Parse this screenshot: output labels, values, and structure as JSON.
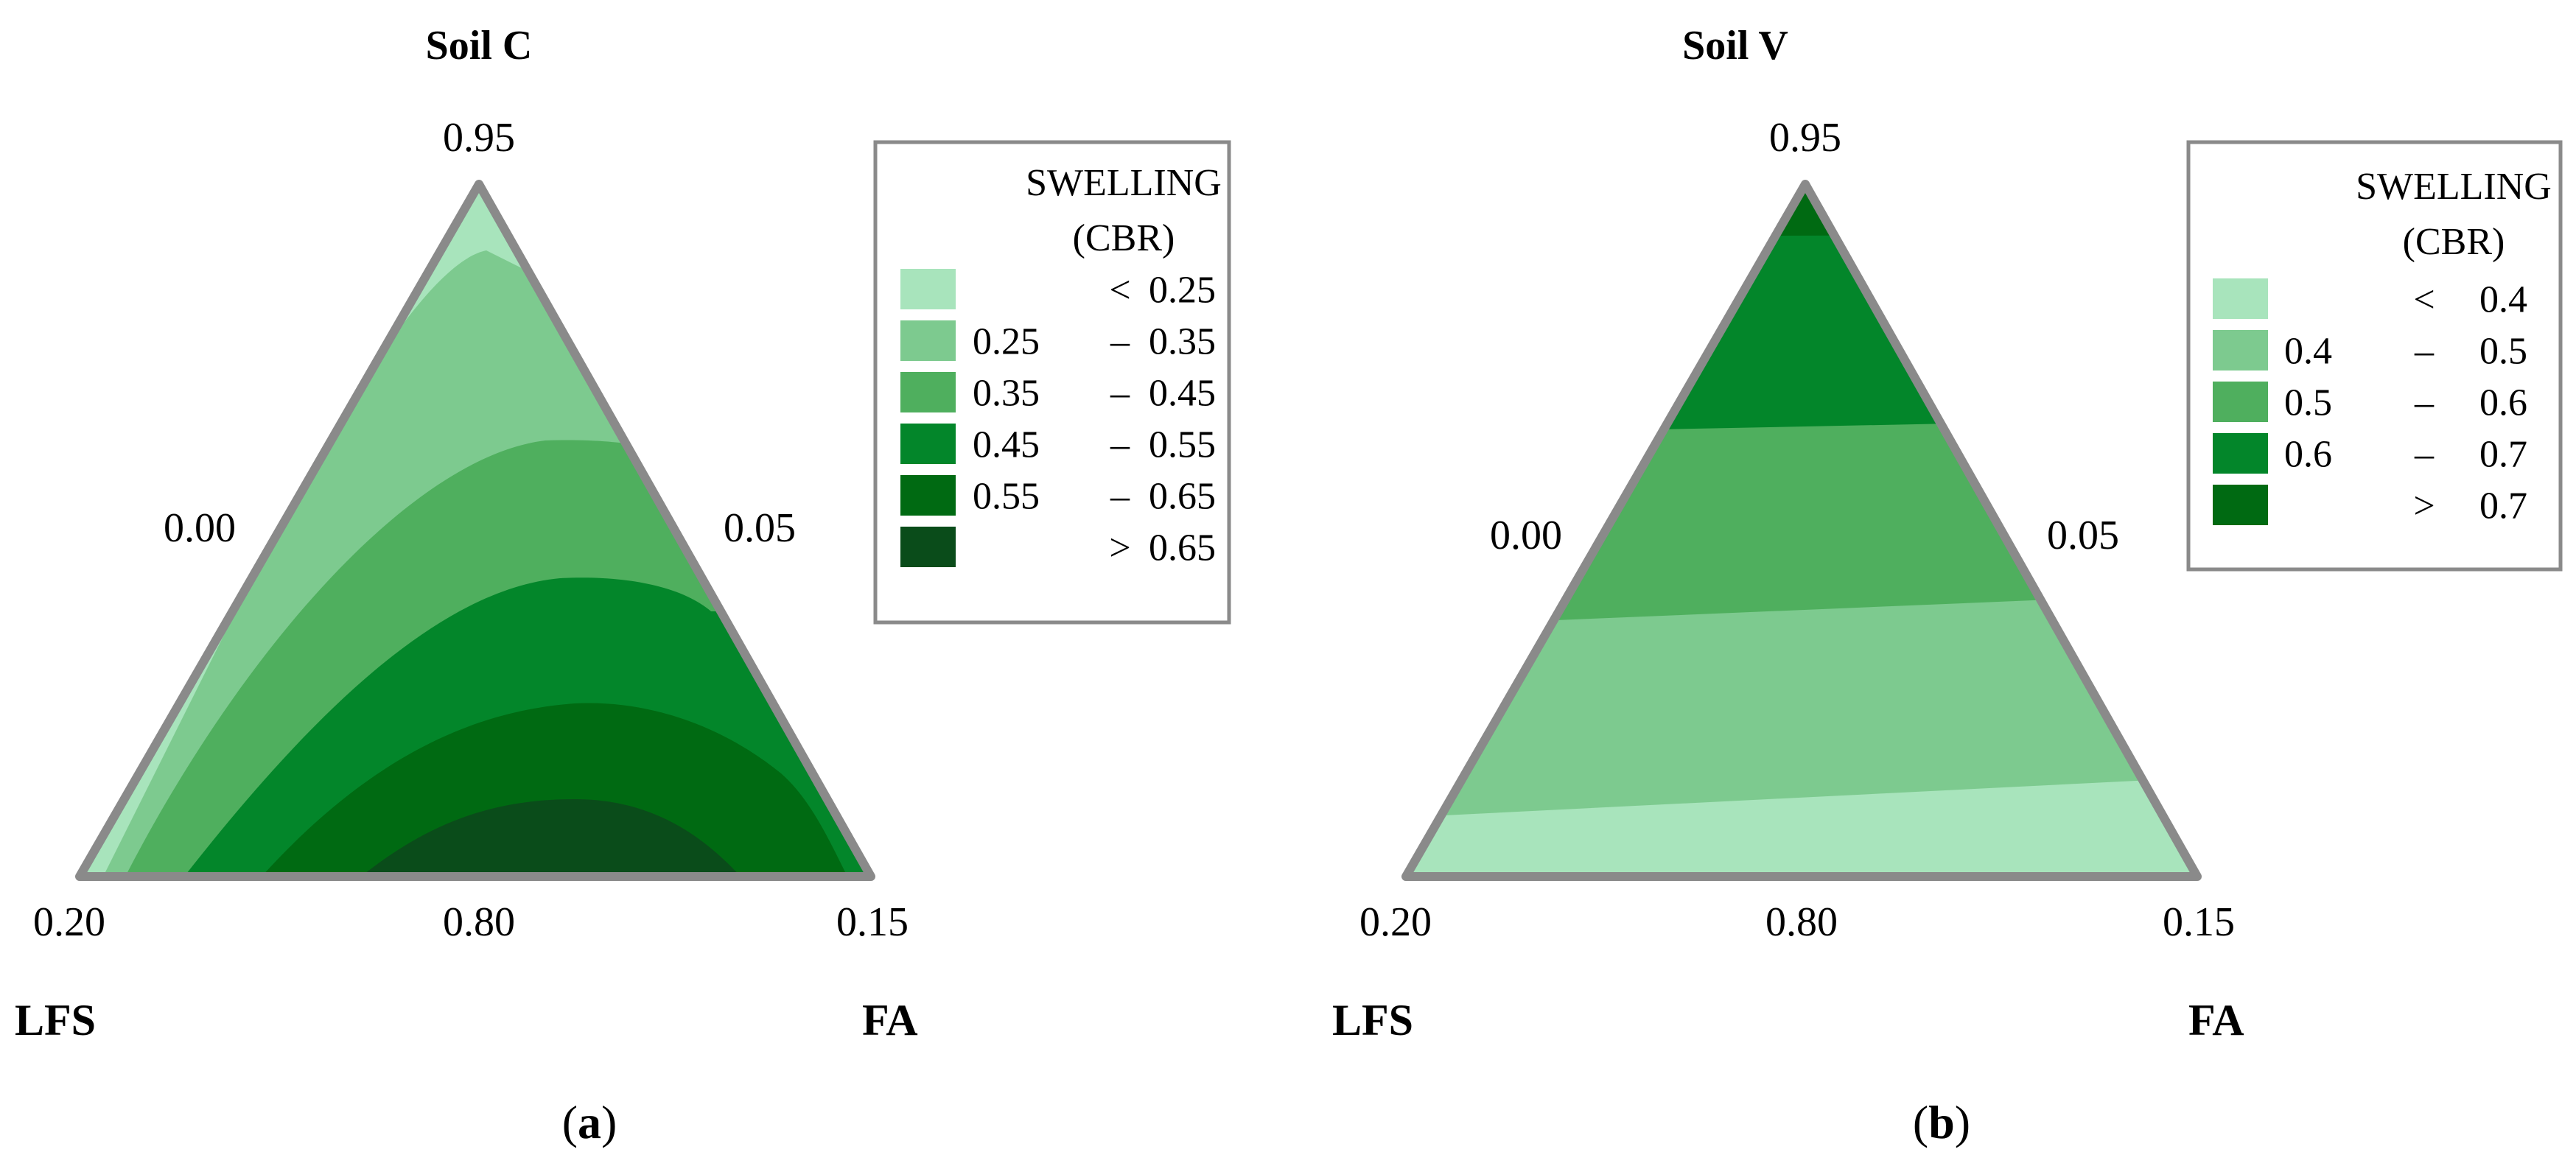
{
  "chart_data": [
    {
      "type": "ternary-contour",
      "panel_caption": "a",
      "title": "Soil C",
      "components": {
        "top": {
          "name": "",
          "label": "0.95"
        },
        "left": {
          "name": "LFS",
          "label": "0.20"
        },
        "right": {
          "name": "FA",
          "label": "0.15"
        }
      },
      "edge_labels": {
        "left_edge": "0.00",
        "right_edge": "0.05",
        "bottom_edge": "0.80"
      },
      "legend": {
        "title_line1": "SWELLING",
        "title_line2": "(CBR)",
        "bins": [
          {
            "low": "",
            "op": "<",
            "high": "0.25",
            "color": "#a8e4bc"
          },
          {
            "low": "0.25",
            "op": "–",
            "high": "0.35",
            "color": "#7dca8f"
          },
          {
            "low": "0.35",
            "op": "–",
            "high": "0.45",
            "color": "#4faf5e"
          },
          {
            "low": "0.45",
            "op": "–",
            "high": "0.55",
            "color": "#03862a"
          },
          {
            "low": "0.55",
            "op": "–",
            "high": "0.65",
            "color": "#006a12"
          },
          {
            "low": "",
            "op": ">",
            "high": "0.65",
            "color": "#0a4c1a"
          }
        ]
      }
    },
    {
      "type": "ternary-contour",
      "panel_caption": "b",
      "title": "Soil V",
      "components": {
        "top": {
          "name": "",
          "label": "0.95"
        },
        "left": {
          "name": "LFS",
          "label": "0.20"
        },
        "right": {
          "name": "FA",
          "label": "0.15"
        }
      },
      "edge_labels": {
        "left_edge": "0.00",
        "right_edge": "0.05",
        "bottom_edge": "0.80"
      },
      "legend": {
        "title_line1": "SWELLING",
        "title_line2": "(CBR)",
        "bins": [
          {
            "low": "",
            "op": "<",
            "high": "0.4",
            "color": "#a8e4bc"
          },
          {
            "low": "0.4",
            "op": "–",
            "high": "0.5",
            "color": "#7dca8f"
          },
          {
            "low": "0.5",
            "op": "–",
            "high": "0.6",
            "color": "#4faf5e"
          },
          {
            "low": "0.6",
            "op": "–",
            "high": "0.7",
            "color": "#03862a"
          },
          {
            "low": "",
            "op": ">",
            "high": "0.7",
            "color": "#006a12"
          }
        ]
      }
    }
  ]
}
